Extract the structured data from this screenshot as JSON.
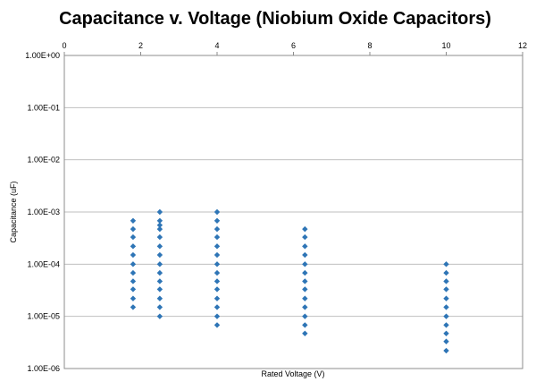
{
  "chart_data": {
    "type": "scatter",
    "title": "Capacitance v. Voltage (Niobium Oxide Capacitors)",
    "xlabel": "Rated Voltage (V)",
    "ylabel": "Capacitance (uF)",
    "xlim": [
      0,
      12
    ],
    "ylim": [
      1e-06,
      1
    ],
    "yscale": "log",
    "grid": true,
    "legend": "none",
    "marker_color": "#2e75b6",
    "x_ticks": [
      "0",
      "2",
      "4",
      "6",
      "8",
      "10",
      "12"
    ],
    "y_ticks": [
      "1.00E+00",
      "1.00E-01",
      "1.00E-02",
      "1.00E-03",
      "1.00E-04",
      "1.00E-05",
      "1.00E-06"
    ],
    "series": [
      {
        "points": [
          {
            "x": 1.8,
            "y": 0.00068
          },
          {
            "x": 1.8,
            "y": 0.00047
          },
          {
            "x": 1.8,
            "y": 0.00033
          },
          {
            "x": 1.8,
            "y": 0.00022
          },
          {
            "x": 1.8,
            "y": 0.00015
          },
          {
            "x": 1.8,
            "y": 0.0001
          },
          {
            "x": 1.8,
            "y": 6.8e-05
          },
          {
            "x": 1.8,
            "y": 4.7e-05
          },
          {
            "x": 1.8,
            "y": 3.3e-05
          },
          {
            "x": 1.8,
            "y": 2.2e-05
          },
          {
            "x": 1.8,
            "y": 1.5e-05
          },
          {
            "x": 2.5,
            "y": 0.001
          },
          {
            "x": 2.5,
            "y": 0.00068
          },
          {
            "x": 2.5,
            "y": 0.00056
          },
          {
            "x": 2.5,
            "y": 0.00047
          },
          {
            "x": 2.5,
            "y": 0.00033
          },
          {
            "x": 2.5,
            "y": 0.00022
          },
          {
            "x": 2.5,
            "y": 0.00015
          },
          {
            "x": 2.5,
            "y": 0.0001
          },
          {
            "x": 2.5,
            "y": 6.8e-05
          },
          {
            "x": 2.5,
            "y": 4.7e-05
          },
          {
            "x": 2.5,
            "y": 3.3e-05
          },
          {
            "x": 2.5,
            "y": 2.2e-05
          },
          {
            "x": 2.5,
            "y": 1.5e-05
          },
          {
            "x": 2.5,
            "y": 1e-05
          },
          {
            "x": 4,
            "y": 0.001
          },
          {
            "x": 4,
            "y": 0.00068
          },
          {
            "x": 4,
            "y": 0.00047
          },
          {
            "x": 4,
            "y": 0.00033
          },
          {
            "x": 4,
            "y": 0.00022
          },
          {
            "x": 4,
            "y": 0.00015
          },
          {
            "x": 4,
            "y": 0.0001
          },
          {
            "x": 4,
            "y": 6.8e-05
          },
          {
            "x": 4,
            "y": 4.7e-05
          },
          {
            "x": 4,
            "y": 3.3e-05
          },
          {
            "x": 4,
            "y": 2.2e-05
          },
          {
            "x": 4,
            "y": 1.5e-05
          },
          {
            "x": 4,
            "y": 1e-05
          },
          {
            "x": 4,
            "y": 6.8e-06
          },
          {
            "x": 6.3,
            "y": 0.00047
          },
          {
            "x": 6.3,
            "y": 0.00033
          },
          {
            "x": 6.3,
            "y": 0.00022
          },
          {
            "x": 6.3,
            "y": 0.00015
          },
          {
            "x": 6.3,
            "y": 0.0001
          },
          {
            "x": 6.3,
            "y": 6.8e-05
          },
          {
            "x": 6.3,
            "y": 4.7e-05
          },
          {
            "x": 6.3,
            "y": 3.3e-05
          },
          {
            "x": 6.3,
            "y": 2.2e-05
          },
          {
            "x": 6.3,
            "y": 1.5e-05
          },
          {
            "x": 6.3,
            "y": 1e-05
          },
          {
            "x": 6.3,
            "y": 6.8e-06
          },
          {
            "x": 6.3,
            "y": 4.7e-06
          },
          {
            "x": 10,
            "y": 0.0001
          },
          {
            "x": 10,
            "y": 6.8e-05
          },
          {
            "x": 10,
            "y": 4.7e-05
          },
          {
            "x": 10,
            "y": 3.3e-05
          },
          {
            "x": 10,
            "y": 2.2e-05
          },
          {
            "x": 10,
            "y": 1.5e-05
          },
          {
            "x": 10,
            "y": 1e-05
          },
          {
            "x": 10,
            "y": 6.8e-06
          },
          {
            "x": 10,
            "y": 4.7e-06
          },
          {
            "x": 10,
            "y": 3.3e-06
          },
          {
            "x": 10,
            "y": 2.2e-06
          }
        ]
      }
    ]
  }
}
